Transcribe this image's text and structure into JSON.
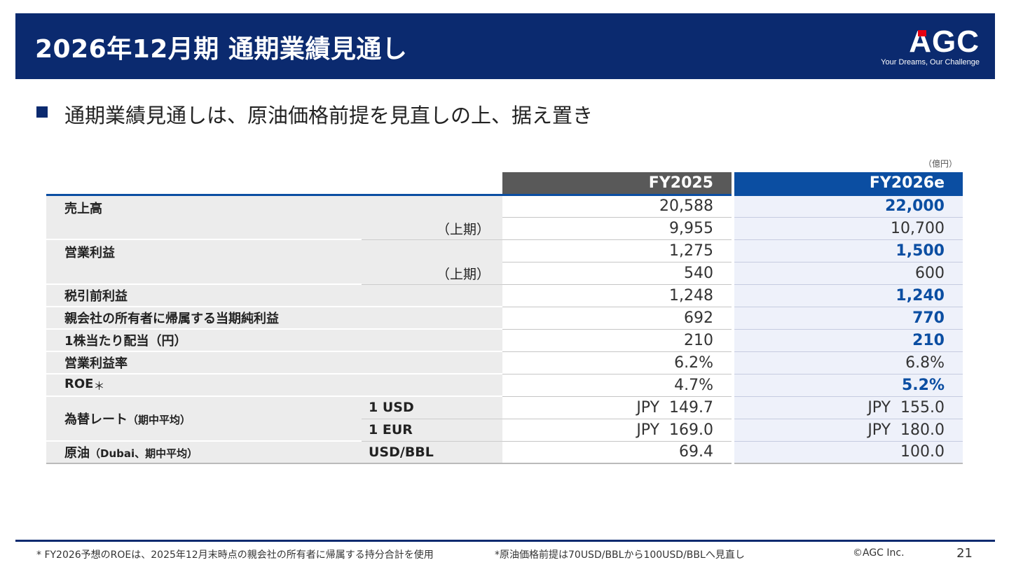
{
  "header": {
    "title": "2026年12月期 通期業績見通し",
    "logo_text": "AGC",
    "tagline": "Your Dreams, Our Challenge"
  },
  "headline": "通期業績見通しは、原油価格前提を見直しの上、据え置き",
  "unit_note": "（億円）",
  "table": {
    "col_fy2025": "FY2025",
    "col_fy2026": "FY2026e",
    "rows": [
      {
        "label": "売上高",
        "sub": "",
        "fy2025": "20,588",
        "fy2026": "22,000"
      },
      {
        "label": "",
        "sub": "（上期）",
        "fy2025": "9,955",
        "fy2026": "10,700"
      },
      {
        "label": "営業利益",
        "sub": "",
        "fy2025": "1,275",
        "fy2026": "1,500"
      },
      {
        "label": "",
        "sub": "（上期）",
        "fy2025": "540",
        "fy2026": "600"
      },
      {
        "label": "税引前利益",
        "sub": "",
        "fy2025": "1,248",
        "fy2026": "1,240"
      },
      {
        "label": "親会社の所有者に帰属する当期純利益",
        "sub": "",
        "fy2025": "692",
        "fy2026": "770"
      },
      {
        "label": "1株当たり配当（円）",
        "sub": "",
        "fy2025": "210",
        "fy2026": "210"
      },
      {
        "label": "営業利益率",
        "sub": "",
        "fy2025": "6.2%",
        "fy2026": "6.8%"
      },
      {
        "label": "ROE",
        "label_mark": "＊",
        "sub": "",
        "fy2025": "4.7%",
        "fy2026": "5.2%"
      },
      {
        "label": "為替レート",
        "label_small": "（期中平均）",
        "sub": "1 USD",
        "fy2025": "JPY  149.7",
        "fy2026": "JPY  155.0"
      },
      {
        "label": "",
        "sub": "1 EUR",
        "fy2025": "JPY  169.0",
        "fy2026": "JPY  180.0"
      },
      {
        "label": "原油",
        "label_small": "（Dubai、期中平均）",
        "sub": "USD/BBL",
        "fy2025": "69.4",
        "fy2026": "100.0"
      }
    ]
  },
  "footer": {
    "note1": "* FY2026予想のROEは、2025年12月末時点の親会社の所有者に帰属する持分合計を使用",
    "note2": "*原油価格前提は70USD/BBLから100USD/BBLへ見直し",
    "copyright": "©AGC Inc.",
    "page_number": "21"
  },
  "colors": {
    "header_navy": "#0b2a6f",
    "fy2026_blue": "#0b4ea2",
    "fy2025_gray": "#595959",
    "logo_red": "#e60012"
  }
}
